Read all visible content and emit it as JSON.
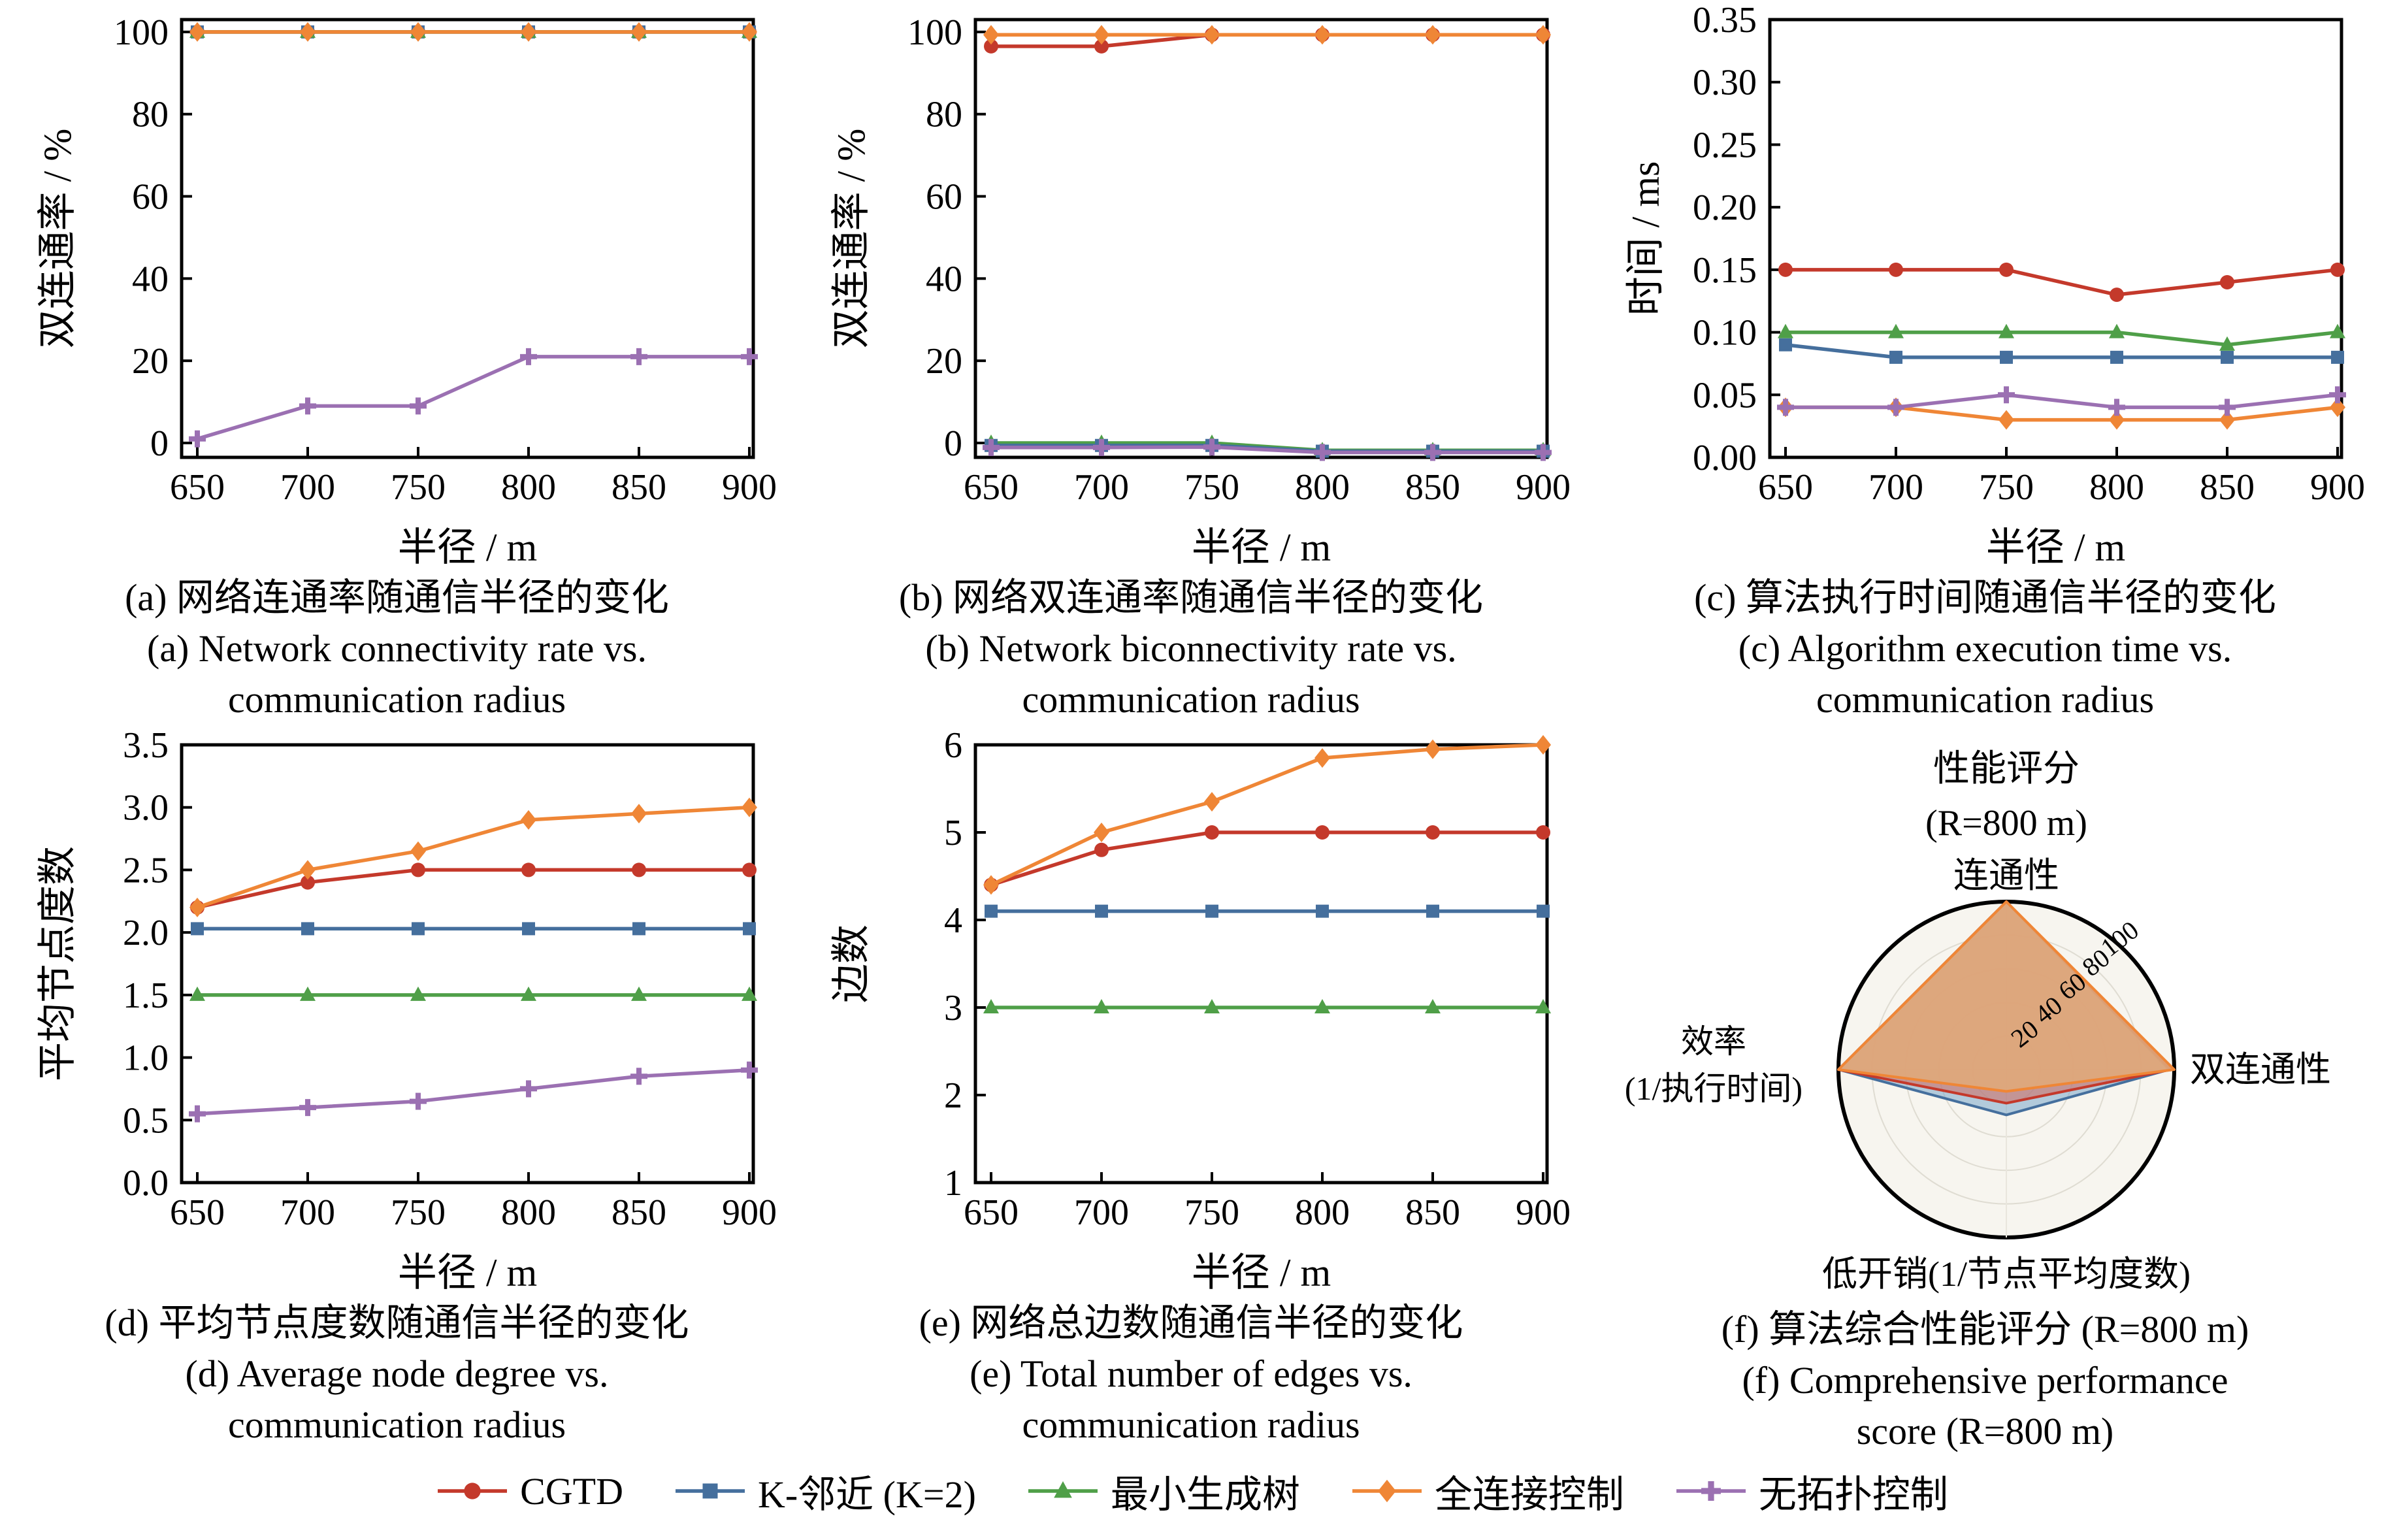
{
  "algorithms": [
    {
      "key": "cgtd",
      "label": "CGTD",
      "color": "#c4392b",
      "marker": "circle"
    },
    {
      "key": "knn",
      "label": "K-邻近 (K=2)",
      "color": "#456f9d",
      "marker": "square"
    },
    {
      "key": "mst",
      "label": "最小生成树",
      "color": "#4f9f48",
      "marker": "triangle"
    },
    {
      "key": "full",
      "label": "全连接控制",
      "color": "#ef8636",
      "marker": "diamond"
    },
    {
      "key": "none",
      "label": "无拓扑控制",
      "color": "#9b70b2",
      "marker": "plus"
    }
  ],
  "chart_data": [
    {
      "id": "a",
      "type": "line",
      "xlabel": "半径 / m",
      "ylabel": "双连通率 / %",
      "x": [
        650,
        700,
        750,
        800,
        850,
        900
      ],
      "xtick_labels": [
        "650",
        "700",
        "750",
        "800",
        "850",
        "900"
      ],
      "ylim": [
        -3.5,
        103
      ],
      "yticks": [
        0,
        20,
        40,
        60,
        80,
        100
      ],
      "ytick_labels": [
        "0",
        "20",
        "40",
        "60",
        "80",
        "100"
      ],
      "series": [
        {
          "algo": "cgtd",
          "values": [
            100,
            100,
            100,
            100,
            100,
            100
          ]
        },
        {
          "algo": "knn",
          "values": [
            100,
            100,
            100,
            100,
            100,
            100
          ]
        },
        {
          "algo": "mst",
          "values": [
            100,
            100,
            100,
            100,
            100,
            100
          ]
        },
        {
          "algo": "full",
          "values": [
            100,
            100,
            100,
            100,
            100,
            100
          ]
        },
        {
          "algo": "none",
          "values": [
            1,
            9,
            9,
            21,
            21,
            21
          ]
        }
      ],
      "caption_zh": "(a) 网络连通率随通信半径的变化",
      "caption_en1": "(a) Network connectivity rate vs.",
      "caption_en2": "communication radius"
    },
    {
      "id": "b",
      "type": "line",
      "xlabel": "半径 / m",
      "ylabel": "双连通率 / %",
      "x": [
        650,
        700,
        750,
        800,
        850,
        900
      ],
      "xtick_labels": [
        "650",
        "700",
        "750",
        "800",
        "850",
        "900"
      ],
      "ylim": [
        -3.5,
        103
      ],
      "yticks": [
        0,
        20,
        40,
        60,
        80,
        100
      ],
      "ytick_labels": [
        "0",
        "20",
        "40",
        "60",
        "80",
        "100"
      ],
      "series": [
        {
          "algo": "mst",
          "values": [
            0,
            0,
            0,
            -1.8,
            -1.8,
            -1.8
          ]
        },
        {
          "algo": "knn",
          "values": [
            -0.6,
            -0.6,
            -0.6,
            -2.0,
            -2.0,
            -2.0
          ]
        },
        {
          "algo": "none",
          "values": [
            -1.1,
            -1.1,
            -1.0,
            -2.3,
            -2.3,
            -2.3
          ]
        },
        {
          "algo": "cgtd",
          "values": [
            96.5,
            96.5,
            99.3,
            99.3,
            99.3,
            99.3
          ]
        },
        {
          "algo": "full",
          "values": [
            99.3,
            99.3,
            99.3,
            99.3,
            99.3,
            99.3
          ]
        }
      ],
      "caption_zh": "(b) 网络双连通率随通信半径的变化",
      "caption_en1": "(b) Network biconnectivity rate vs.",
      "caption_en2": "communication radius"
    },
    {
      "id": "c",
      "type": "line",
      "xlabel": "半径 / m",
      "ylabel": "时间 / ms",
      "x": [
        650,
        700,
        750,
        800,
        850,
        900
      ],
      "xtick_labels": [
        "650",
        "700",
        "750",
        "800",
        "850",
        "900"
      ],
      "ylim": [
        0,
        0.35
      ],
      "yticks": [
        0,
        0.05,
        0.1,
        0.15,
        0.2,
        0.25,
        0.3,
        0.35
      ],
      "ytick_labels": [
        "0.00",
        "0.05",
        "0.10",
        "0.15",
        "0.20",
        "0.25",
        "0.30",
        "0.35"
      ],
      "series": [
        {
          "algo": "full",
          "values": [
            0.04,
            0.04,
            0.03,
            0.03,
            0.03,
            0.04
          ]
        },
        {
          "algo": "none",
          "values": [
            0.04,
            0.04,
            0.05,
            0.04,
            0.04,
            0.05
          ]
        },
        {
          "algo": "knn",
          "values": [
            0.09,
            0.08,
            0.08,
            0.08,
            0.08,
            0.08
          ]
        },
        {
          "algo": "mst",
          "values": [
            0.1,
            0.1,
            0.1,
            0.1,
            0.09,
            0.1
          ]
        },
        {
          "algo": "cgtd",
          "values": [
            0.15,
            0.15,
            0.15,
            0.13,
            0.14,
            0.15
          ]
        }
      ],
      "caption_zh": "(c) 算法执行时间随通信半径的变化",
      "caption_en1": "(c) Algorithm execution time vs.",
      "caption_en2": "communication radius"
    },
    {
      "id": "d",
      "type": "line",
      "xlabel": "半径 / m",
      "ylabel": "平均节点度数",
      "x": [
        650,
        700,
        750,
        800,
        850,
        900
      ],
      "xtick_labels": [
        "650",
        "700",
        "750",
        "800",
        "850",
        "900"
      ],
      "ylim": [
        0,
        3.5
      ],
      "yticks": [
        0,
        0.5,
        1.0,
        1.5,
        2.0,
        2.5,
        3.0,
        3.5
      ],
      "ytick_labels": [
        "0.0",
        "0.5",
        "1.0",
        "1.5",
        "2.0",
        "2.5",
        "3.0",
        "3.5"
      ],
      "series": [
        {
          "algo": "knn",
          "values": [
            2.03,
            2.03,
            2.03,
            2.03,
            2.03,
            2.03
          ]
        },
        {
          "algo": "mst",
          "values": [
            1.5,
            1.5,
            1.5,
            1.5,
            1.5,
            1.5
          ]
        },
        {
          "algo": "none",
          "values": [
            0.55,
            0.6,
            0.65,
            0.75,
            0.85,
            0.9
          ]
        },
        {
          "algo": "cgtd",
          "values": [
            2.2,
            2.4,
            2.5,
            2.5,
            2.5,
            2.5
          ]
        },
        {
          "algo": "full",
          "values": [
            2.2,
            2.5,
            2.65,
            2.9,
            2.95,
            3.0
          ]
        }
      ],
      "caption_zh": "(d) 平均节点度数随通信半径的变化",
      "caption_en1": "(d) Average node degree vs.",
      "caption_en2": "communication radius"
    },
    {
      "id": "e",
      "type": "line",
      "xlabel": "半径 / m",
      "ylabel": "边数",
      "x": [
        650,
        700,
        750,
        800,
        850,
        900
      ],
      "xtick_labels": [
        "650",
        "700",
        "750",
        "800",
        "850",
        "900"
      ],
      "ylim": [
        1,
        6
      ],
      "yticks": [
        1,
        2,
        3,
        4,
        5,
        6
      ],
      "ytick_labels": [
        "1",
        "2",
        "3",
        "4",
        "5",
        "6"
      ],
      "series": [
        {
          "algo": "knn",
          "values": [
            4.1,
            4.1,
            4.1,
            4.1,
            4.1,
            4.1
          ]
        },
        {
          "algo": "mst",
          "values": [
            3.0,
            3.0,
            3.0,
            3.0,
            3.0,
            3.0
          ]
        },
        {
          "algo": "cgtd",
          "values": [
            4.4,
            4.8,
            5.0,
            5.0,
            5.0,
            5.0
          ]
        },
        {
          "algo": "full",
          "values": [
            4.4,
            5.0,
            5.35,
            5.85,
            5.95,
            6.0
          ]
        }
      ],
      "caption_zh": "(e) 网络总边数随通信半径的变化",
      "caption_en1": "(e) Total number of edges vs.",
      "caption_en2": "communication radius"
    },
    {
      "id": "f",
      "type": "radar",
      "title_line1": "性能评分",
      "title_line2": "(R=800 m)",
      "axis_top": "连通性",
      "axis_right": "双连通性",
      "axis_bottom": "低开销(1/节点平均度数)",
      "axis_left_line1": "效率",
      "axis_left_line2": "(1/执行时间)",
      "ticks": [
        20,
        40,
        60,
        80,
        100
      ],
      "tick_labels": [
        "20",
        "40",
        "60",
        "80",
        "100"
      ],
      "series": [
        {
          "algo": "knn",
          "values": [
            100,
            97,
            27,
            100
          ],
          "fill": "rgba(122,166,202,0.55)"
        },
        {
          "algo": "cgtd",
          "values": [
            100,
            98,
            20,
            100
          ],
          "fill": "rgba(210,105,92,0.55)"
        },
        {
          "algo": "full",
          "values": [
            100,
            100,
            13,
            100
          ],
          "fill": "rgba(224,168,122,0.9)"
        }
      ],
      "caption_zh": "(f) 算法综合性能评分 (R=800 m)",
      "caption_en1": "(f) Comprehensive performance",
      "caption_en2": "score (R=800 m)"
    }
  ]
}
